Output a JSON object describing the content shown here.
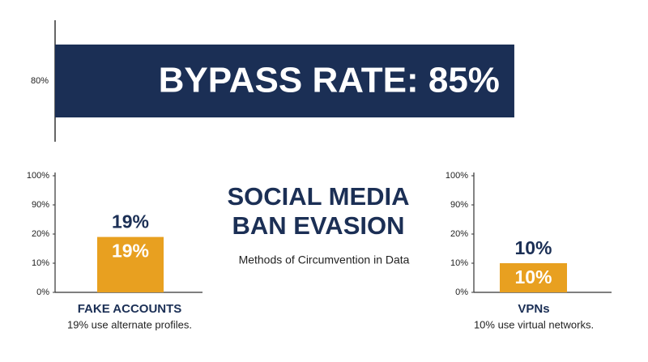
{
  "header": {
    "title_lines": [
      "SOCIAL MEDIA",
      "BAN EVASION"
    ],
    "subtitle": "Methods of Circumvention in Data"
  },
  "chart_data": [
    {
      "type": "hbar",
      "categories": [
        "80%"
      ],
      "values": [
        85
      ],
      "value_labels": [
        "BYPASS RATE: 85%"
      ],
      "color": "#1b2f55",
      "xlim": [
        0,
        100
      ]
    },
    {
      "type": "bar",
      "categories": [
        "FAKE ACCOUNTS"
      ],
      "caption": "19% use alternate profiles.",
      "values": [
        19
      ],
      "value_labels": [
        "19%"
      ],
      "color": "#e8a020",
      "ylim": [
        0,
        100
      ],
      "yticks": [
        {
          "value": 0,
          "label": "0%"
        },
        {
          "value": 10,
          "label": "10%"
        },
        {
          "value": 20,
          "label": "20%"
        },
        {
          "value": 90,
          "label": "90%"
        },
        {
          "value": 100,
          "label": "100%"
        }
      ]
    },
    {
      "type": "bar",
      "categories": [
        "VPNs"
      ],
      "caption": "10% use virtual networks.",
      "values": [
        10
      ],
      "value_labels": [
        "10%"
      ],
      "color": "#e8a020",
      "ylim": [
        0,
        100
      ],
      "yticks": [
        {
          "value": 0,
          "label": "0%"
        },
        {
          "value": 10,
          "label": "10%"
        },
        {
          "value": 20,
          "label": "20%"
        },
        {
          "value": 90,
          "label": "90%"
        },
        {
          "value": 100,
          "label": "100%"
        }
      ]
    }
  ]
}
